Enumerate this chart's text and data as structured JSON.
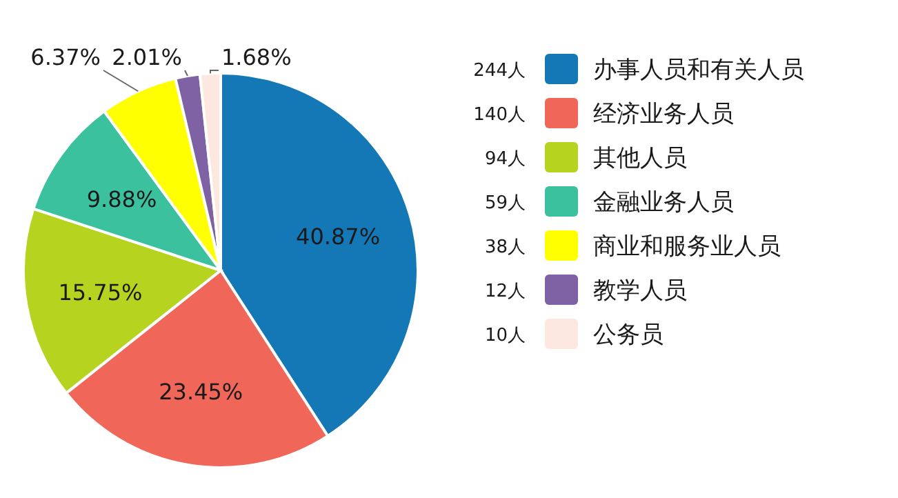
{
  "chart_data": {
    "type": "pie",
    "categories": [
      "办事人员和有关人员",
      "经济业务人员",
      "其他人员",
      "金融业务人员",
      "商业和服务业人员",
      "教学人员",
      "公务员"
    ],
    "values": [
      40.87,
      23.45,
      15.75,
      9.88,
      6.37,
      2.01,
      1.68
    ],
    "value_labels": [
      "40.87%",
      "23.45%",
      "15.75%",
      "9.88%",
      "6.37%",
      "2.01%",
      "1.68%"
    ],
    "colors": [
      "#1478b6",
      "#f0675a",
      "#b6d41f",
      "#3cc19f",
      "#ffff00",
      "#7f62a4",
      "#fce8de"
    ],
    "annotations": [
      "244人",
      "140人",
      "94人",
      "59人",
      "38人",
      "12人",
      "10人"
    ],
    "legend": "right"
  }
}
